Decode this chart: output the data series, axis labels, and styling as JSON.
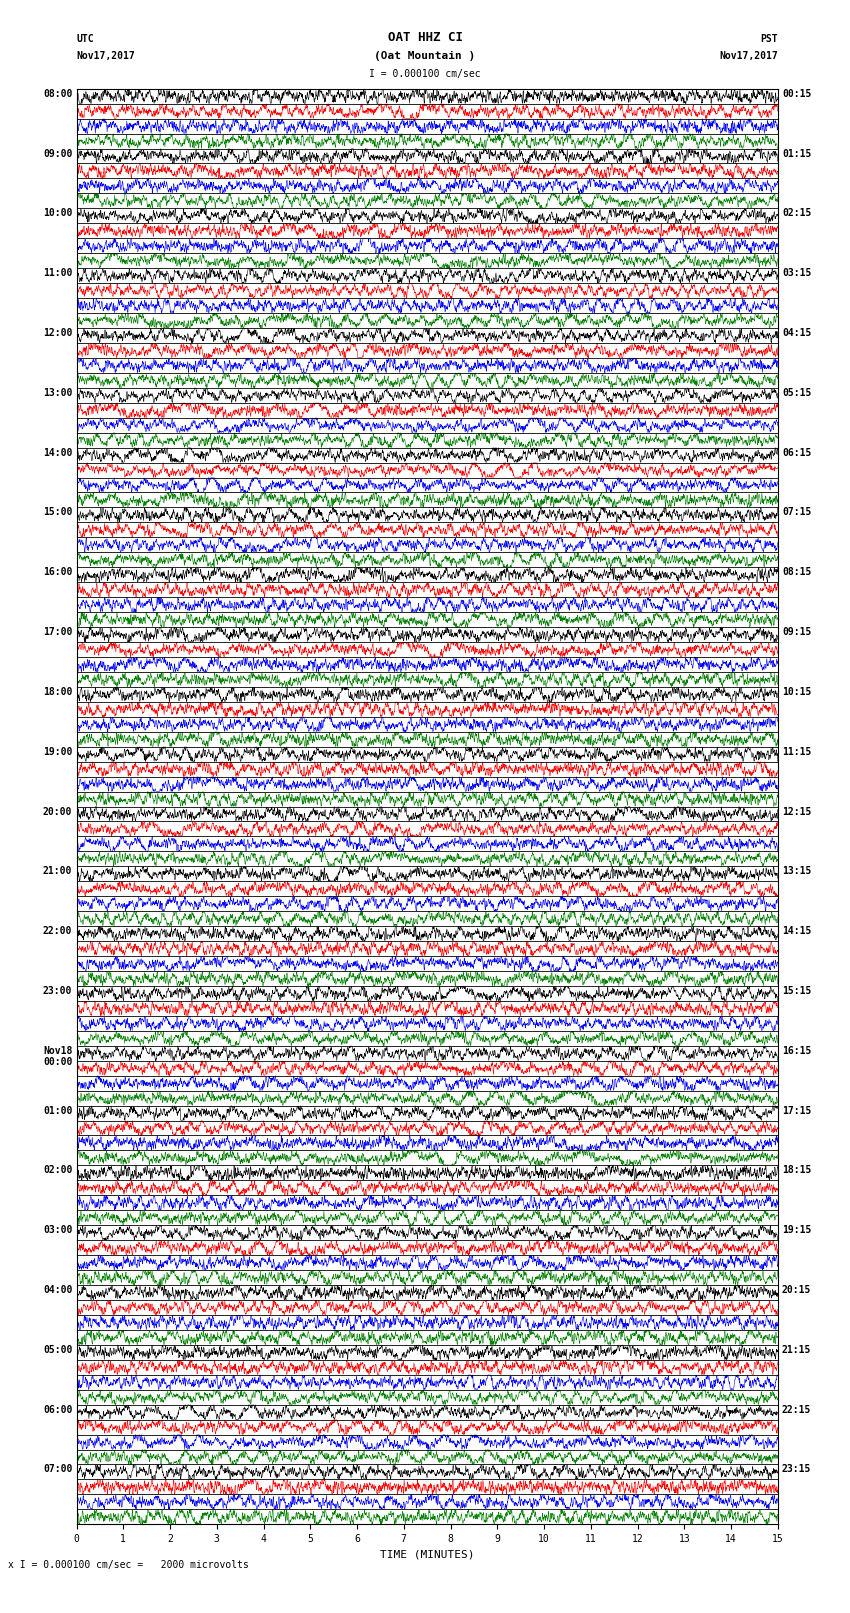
{
  "title_line1": "OAT HHZ CI",
  "title_line2": "(Oat Mountain )",
  "scale_label": "I = 0.000100 cm/sec",
  "footer_label": "x I = 0.000100 cm/sec =   2000 microvolts",
  "xlabel": "TIME (MINUTES)",
  "left_times": [
    "08:00",
    "09:00",
    "10:00",
    "11:00",
    "12:00",
    "13:00",
    "14:00",
    "15:00",
    "16:00",
    "17:00",
    "18:00",
    "19:00",
    "20:00",
    "21:00",
    "22:00",
    "23:00",
    "Nov18\n00:00",
    "01:00",
    "02:00",
    "03:00",
    "04:00",
    "05:00",
    "06:00",
    "07:00"
  ],
  "right_times": [
    "00:15",
    "01:15",
    "02:15",
    "03:15",
    "04:15",
    "05:15",
    "06:15",
    "07:15",
    "08:15",
    "09:15",
    "10:15",
    "11:15",
    "12:15",
    "13:15",
    "14:15",
    "15:15",
    "16:15",
    "17:15",
    "18:15",
    "19:15",
    "20:15",
    "21:15",
    "22:15",
    "23:15"
  ],
  "num_rows": 24,
  "minutes_per_row": 15,
  "sub_colors": [
    "black",
    "red",
    "blue",
    "green"
  ],
  "bg_color": "white",
  "trace_lw": 0.4,
  "fig_width": 8.5,
  "fig_height": 16.13,
  "dpi": 100,
  "xlim": [
    0,
    15
  ],
  "xticks": [
    0,
    1,
    2,
    3,
    4,
    5,
    6,
    7,
    8,
    9,
    10,
    11,
    12,
    13,
    14,
    15
  ],
  "noise_seed": 42,
  "font_size_title": 9,
  "font_size_labels": 7,
  "font_size_axis": 7,
  "pts_per_minute": 200
}
